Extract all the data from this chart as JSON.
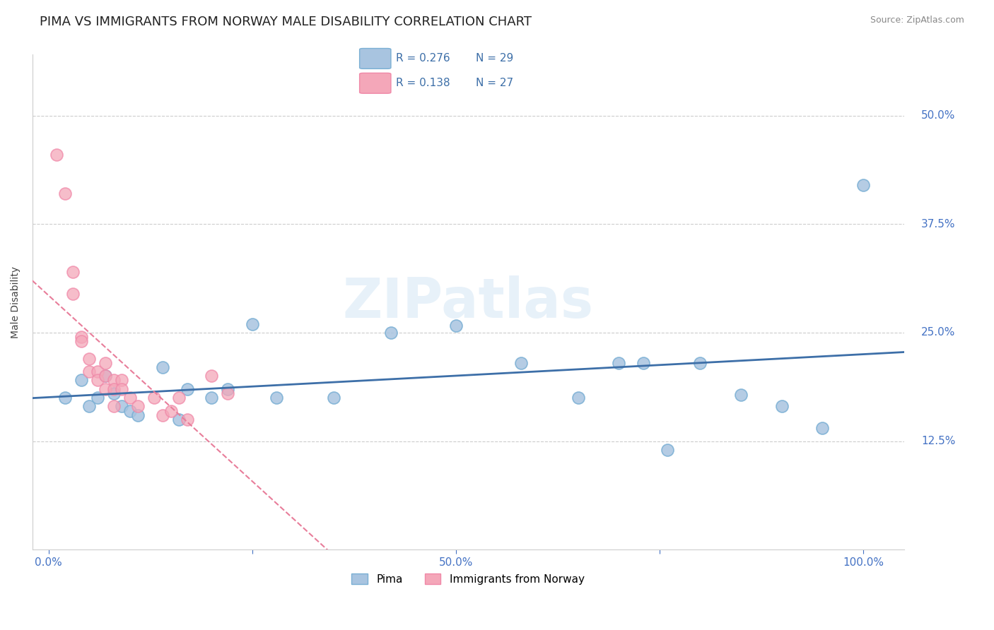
{
  "title": "PIMA VS IMMIGRANTS FROM NORWAY MALE DISABILITY CORRELATION CHART",
  "source": "Source: ZipAtlas.com",
  "ylabel_label": "Male Disability",
  "watermark": "ZIPatlas",
  "legend_r1": "R = 0.276",
  "legend_n1": "N = 29",
  "legend_r2": "R = 0.138",
  "legend_n2": "N = 27",
  "x_ticks": [
    0.0,
    0.25,
    0.5,
    0.75,
    1.0
  ],
  "x_tick_labels": [
    "0.0%",
    "",
    "50.0%",
    "",
    "100.0%"
  ],
  "y_tick_labels": [
    "12.5%",
    "25.0%",
    "37.5%",
    "50.0%"
  ],
  "y_ticks": [
    0.125,
    0.25,
    0.375,
    0.5
  ],
  "xlim": [
    -0.02,
    1.05
  ],
  "ylim": [
    0.0,
    0.57
  ],
  "pima_color": "#a8c4e0",
  "norway_color": "#f4a7b9",
  "pima_edge_color": "#7aafd4",
  "norway_edge_color": "#f088a8",
  "pima_line_color": "#3d6fa8",
  "norway_line_color": "#e87d9a",
  "pima_x": [
    0.02,
    0.04,
    0.05,
    0.06,
    0.07,
    0.08,
    0.09,
    0.1,
    0.11,
    0.14,
    0.16,
    0.17,
    0.2,
    0.22,
    0.25,
    0.28,
    0.35,
    0.42,
    0.5,
    0.58,
    0.65,
    0.7,
    0.73,
    0.76,
    0.8,
    0.85,
    0.9,
    0.95,
    1.0
  ],
  "pima_y": [
    0.175,
    0.195,
    0.165,
    0.175,
    0.2,
    0.18,
    0.165,
    0.16,
    0.155,
    0.21,
    0.15,
    0.185,
    0.175,
    0.185,
    0.26,
    0.175,
    0.175,
    0.25,
    0.258,
    0.215,
    0.175,
    0.215,
    0.215,
    0.115,
    0.215,
    0.178,
    0.165,
    0.14,
    0.42
  ],
  "norway_x": [
    0.01,
    0.02,
    0.03,
    0.03,
    0.04,
    0.04,
    0.05,
    0.05,
    0.06,
    0.06,
    0.07,
    0.07,
    0.07,
    0.08,
    0.08,
    0.08,
    0.09,
    0.09,
    0.1,
    0.11,
    0.13,
    0.14,
    0.15,
    0.16,
    0.17,
    0.2,
    0.22
  ],
  "norway_y": [
    0.455,
    0.41,
    0.32,
    0.295,
    0.245,
    0.24,
    0.22,
    0.205,
    0.205,
    0.195,
    0.215,
    0.2,
    0.185,
    0.195,
    0.185,
    0.165,
    0.195,
    0.185,
    0.175,
    0.165,
    0.175,
    0.155,
    0.16,
    0.175,
    0.15,
    0.2,
    0.18
  ],
  "background_color": "#ffffff",
  "grid_color": "#cccccc",
  "right_label_color": "#4472c4",
  "title_fontsize": 13,
  "axis_label_fontsize": 10,
  "tick_fontsize": 11
}
